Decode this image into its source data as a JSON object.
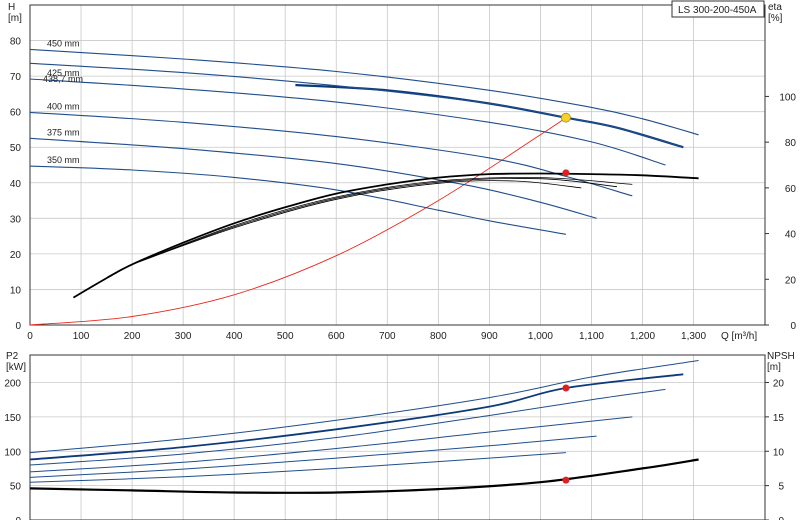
{
  "chart_data": [
    {
      "type": "line",
      "title": "LS 300-200-450A",
      "xlabel": "Q [m³/h]",
      "ylabel": "H [m]",
      "y2label": "eta [%]",
      "xlim": [
        0,
        1440
      ],
      "ylim": [
        0,
        90
      ],
      "y2lim": [
        0,
        140
      ],
      "xticks": [
        "0",
        "100",
        "200",
        "300",
        "400",
        "500",
        "600",
        "700",
        "800",
        "900",
        "1,000",
        "1,100",
        "1,200",
        "1,300"
      ],
      "yticks": [
        "0",
        "10",
        "20",
        "30",
        "40",
        "50",
        "60",
        "70",
        "80"
      ],
      "y2ticks": [
        "0",
        "20",
        "40",
        "60",
        "80",
        "100"
      ],
      "grid": true,
      "colors": {
        "head": "#1f4e8c",
        "head_selected": "#0d3b7a",
        "efficiency": "#000000",
        "system": "#e8291c",
        "duty_point": "#f5d12e",
        "eff_point": "#e02020"
      },
      "series": [
        {
          "name": "450 mm",
          "x": [
            0,
            300,
            600,
            900,
            1100,
            1200,
            1310
          ],
          "y": [
            77.5,
            74.8,
            71.3,
            66.0,
            61.2,
            58.0,
            53.5
          ]
        },
        {
          "name": "438,7 mm",
          "x": [
            520,
            700,
            900,
            1050,
            1150,
            1280
          ],
          "y": [
            67.5,
            66.0,
            62.3,
            58.3,
            55.5,
            50.0
          ]
        },
        {
          "name": "",
          "x": [
            0,
            300,
            600,
            900,
            1050,
            1150,
            1280
          ],
          "y": [
            73.6,
            71.0,
            67.3,
            62.3,
            58.3,
            55.5,
            50.0
          ]
        },
        {
          "name": "425 mm",
          "x": [
            0,
            300,
            600,
            900,
            1100,
            1245
          ],
          "y": [
            69.2,
            66.4,
            62.7,
            57.0,
            51.5,
            45.0
          ]
        },
        {
          "name": "400 mm",
          "x": [
            0,
            300,
            600,
            900,
            1050,
            1180
          ],
          "y": [
            59.8,
            57.0,
            53.0,
            47.0,
            41.8,
            36.3
          ]
        },
        {
          "name": "375 mm",
          "x": [
            0,
            300,
            600,
            850,
            1000,
            1110
          ],
          "y": [
            52.5,
            49.6,
            45.4,
            39.5,
            34.5,
            30.0
          ]
        },
        {
          "name": "350 mm",
          "x": [
            0,
            200,
            400,
            600,
            800,
            900,
            1050
          ],
          "y": [
            44.7,
            43.6,
            41.5,
            38.0,
            32.3,
            29.3,
            25.5
          ]
        }
      ],
      "efficiency_series": [
        {
          "x": [
            85,
            150,
            200,
            300,
            400,
            500,
            600,
            700,
            800,
            900,
            1000,
            1100,
            1200,
            1310
          ],
          "y": [
            12.0,
            20.5,
            26.5,
            36.0,
            44.5,
            51.5,
            57.5,
            61.5,
            64.5,
            66.0,
            66.3,
            66.0,
            65.5,
            64.2
          ]
        },
        {
          "x": [
            200,
            400,
            600,
            800,
            1000,
            1180
          ],
          "y": [
            26.5,
            43.5,
            56.0,
            63.0,
            64.5,
            61.5
          ]
        },
        {
          "x": [
            200,
            400,
            600,
            800,
            1000,
            1150
          ],
          "y": [
            26.5,
            43.0,
            55.5,
            62.5,
            64.0,
            60.5
          ]
        },
        {
          "x": [
            200,
            400,
            600,
            800,
            950,
            1080
          ],
          "y": [
            26.5,
            42.5,
            55.0,
            62.0,
            63.0,
            60.0
          ]
        }
      ],
      "system_curve": {
        "x": [
          0,
          200,
          400,
          600,
          800,
          1000,
          1050
        ],
        "y": [
          0,
          2.4,
          8.5,
          19.5,
          35.0,
          53.5,
          58.3
        ]
      },
      "markers": [
        {
          "name": "duty point",
          "x": 1050,
          "y": 58.3,
          "color": "#f5d12e"
        },
        {
          "name": "efficiency point",
          "x": 1050,
          "y": 42.8,
          "color": "#e02020"
        }
      ]
    },
    {
      "type": "line",
      "ylabel": "P2 [kW]",
      "y2label": "NPSH [m]",
      "xlim": [
        0,
        1440
      ],
      "ylim": [
        0,
        240
      ],
      "y2lim": [
        0,
        24
      ],
      "yticks": [
        "0",
        "50",
        "100",
        "150",
        "200"
      ],
      "y2ticks": [
        "0",
        "5",
        "10",
        "15",
        "20"
      ],
      "grid": true,
      "series": [
        {
          "x": [
            0,
            300,
            600,
            900,
            1100,
            1310
          ],
          "y": [
            98,
            118,
            145,
            178,
            208,
            232
          ]
        },
        {
          "x": [
            0,
            300,
            600,
            900,
            1050,
            1280
          ],
          "y": [
            88,
            106,
            132,
            165,
            192,
            212
          ]
        },
        {
          "x": [
            0,
            300,
            600,
            900,
            1100,
            1245
          ],
          "y": [
            80,
            96,
            120,
            152,
            175,
            190
          ]
        },
        {
          "x": [
            0,
            300,
            600,
            900,
            1180
          ],
          "y": [
            70,
            84,
            104,
            128,
            150
          ]
        },
        {
          "x": [
            0,
            300,
            600,
            900,
            1110
          ],
          "y": [
            62,
            74,
            90,
            108,
            122
          ]
        },
        {
          "x": [
            0,
            300,
            600,
            900,
            1050
          ],
          "y": [
            55,
            63,
            75,
            90,
            98
          ]
        }
      ],
      "npsh_series": {
        "x": [
          0,
          200,
          400,
          600,
          800,
          1000,
          1200,
          1310
        ],
        "y": [
          4.6,
          4.3,
          4.0,
          4.0,
          4.5,
          5.5,
          7.5,
          8.8
        ]
      },
      "markers": [
        {
          "name": "power point",
          "x": 1050,
          "y": 192,
          "color": "#e02020"
        },
        {
          "name": "npsh point",
          "x": 1050,
          "y": 5.8,
          "color": "#e02020"
        }
      ]
    }
  ]
}
